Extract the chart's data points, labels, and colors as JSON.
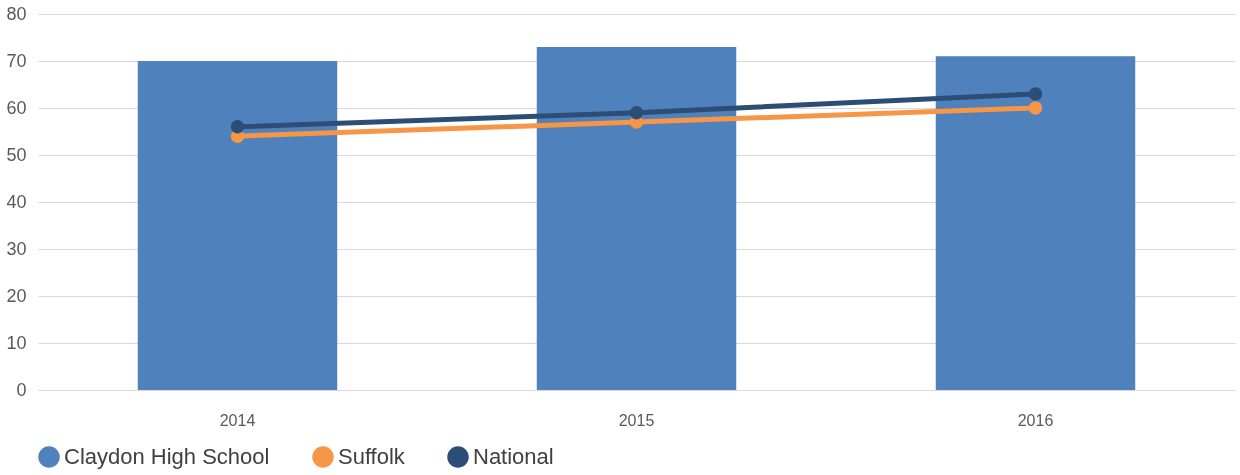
{
  "chart_data": {
    "type": "bar",
    "categories": [
      "2014",
      "2015",
      "2016"
    ],
    "series": [
      {
        "name": "Claydon High School",
        "color": "#4f81bd",
        "values": [
          70,
          73,
          71
        ]
      },
      {
        "name": "Suffolk",
        "type": "line",
        "color": "#f79646",
        "values": [
          54,
          57,
          60
        ]
      },
      {
        "name": "National",
        "type": "line",
        "color": "#2c4d75",
        "values": [
          56,
          59,
          63
        ]
      }
    ],
    "ylim": [
      0,
      80
    ],
    "yticks": [
      0,
      10,
      20,
      30,
      40,
      50,
      60,
      70,
      80
    ],
    "grid": "y",
    "legend": "bottom",
    "marker": "circle",
    "line_style": "solid"
  }
}
